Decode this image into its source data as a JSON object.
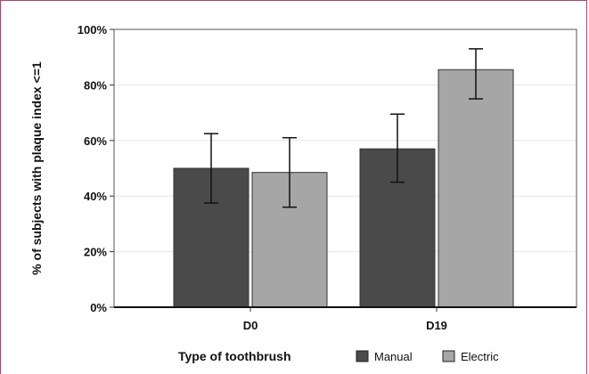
{
  "chart_data": {
    "type": "bar",
    "ylabel": "% of subjects with plaque index <=1",
    "ylim": [
      0,
      100
    ],
    "yticks": [
      "0%",
      "20%",
      "40%",
      "60%",
      "80%",
      "100%"
    ],
    "grid": true,
    "categories": [
      "D0",
      "D19"
    ],
    "series": [
      {
        "name": "Manual",
        "color": "#4a4a4a",
        "values": [
          50,
          57
        ],
        "err_low": [
          37.5,
          45
        ],
        "err_high": [
          62.5,
          69.5
        ]
      },
      {
        "name": "Electric",
        "color": "#a6a6a6",
        "values": [
          48.5,
          85.5
        ],
        "err_low": [
          36,
          75
        ],
        "err_high": [
          61,
          93
        ]
      }
    ],
    "legend": {
      "title": "Type of toothbrush",
      "placement": "bottom"
    }
  }
}
